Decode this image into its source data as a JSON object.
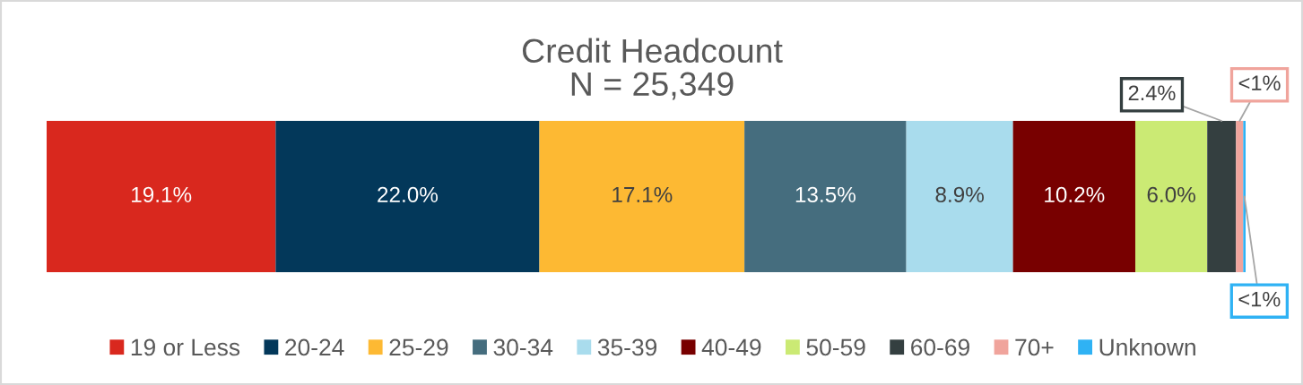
{
  "chart_data": {
    "type": "bar",
    "orientation": "horizontal",
    "stacked": true,
    "title": "Credit Headcount",
    "subtitle": "N = 25,349",
    "categories": [
      null
    ],
    "series": [
      {
        "name": "19 or Less",
        "color": "#d9281e",
        "values": [
          19.1
        ],
        "value_labels": [
          "19.1%"
        ]
      },
      {
        "name": "20-24",
        "color": "#03385a",
        "values": [
          22.0
        ],
        "value_labels": [
          "22.0%"
        ]
      },
      {
        "name": "25-29",
        "color": "#fdb933",
        "values": [
          17.1
        ],
        "value_labels": [
          "17.1%"
        ]
      },
      {
        "name": "30-34",
        "color": "#456d7e",
        "values": [
          13.5
        ],
        "value_labels": [
          "13.5%"
        ]
      },
      {
        "name": "35-39",
        "color": "#a9dced",
        "values": [
          8.9
        ],
        "value_labels": [
          "8.9%"
        ]
      },
      {
        "name": "40-49",
        "color": "#780000",
        "values": [
          10.2
        ],
        "value_labels": [
          "10.2%"
        ]
      },
      {
        "name": "50-59",
        "color": "#cbea74",
        "values": [
          6.0
        ],
        "value_labels": [
          "6.0%"
        ]
      },
      {
        "name": "60-69",
        "color": "#343f40",
        "values": [
          2.4
        ],
        "value_labels": [
          "2.4%"
        ]
      },
      {
        "name": "70+",
        "color": "#f0a49c",
        "values": [
          0.6
        ],
        "value_labels": [
          "<1%"
        ]
      },
      {
        "name": "Unknown",
        "color": "#2fb2f4",
        "values": [
          0.2
        ],
        "value_labels": [
          "<1%"
        ]
      }
    ],
    "legend": "bottom",
    "tick_labels": false
  }
}
